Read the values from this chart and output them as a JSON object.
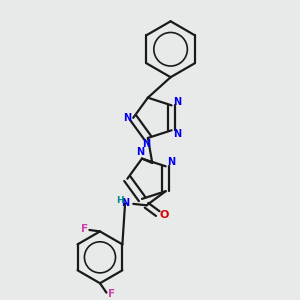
{
  "bg_color": "#e8eaea",
  "bond_color": "#1a1a1a",
  "N_color": "#0000ee",
  "O_color": "#dd0000",
  "F_color": "#cc44aa",
  "H_color": "#008888",
  "lw": 1.6,
  "doff": 0.013,
  "fs": 7.0,
  "figsize": [
    3.0,
    3.0
  ],
  "dpi": 100,
  "xlim": [
    0.1,
    0.9
  ],
  "ylim": [
    0.02,
    1.02
  ]
}
